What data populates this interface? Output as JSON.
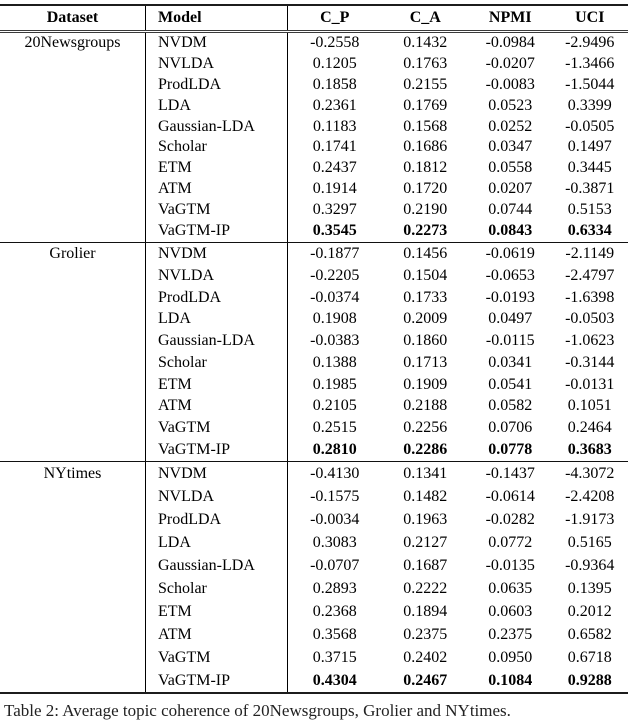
{
  "table": {
    "headers": [
      "Dataset",
      "Model",
      "C_P",
      "C_A",
      "NPMI",
      "UCI"
    ],
    "sections": [
      {
        "dataset": "20Newsgroups",
        "rows": [
          {
            "model": "NVDM",
            "values": [
              "-0.2558",
              "0.1432",
              "-0.0984",
              "-2.9496"
            ],
            "bold": false
          },
          {
            "model": "NVLDA",
            "values": [
              "0.1205",
              "0.1763",
              "-0.0207",
              "-1.3466"
            ],
            "bold": false
          },
          {
            "model": "ProdLDA",
            "values": [
              "0.1858",
              "0.2155",
              "-0.0083",
              "-1.5044"
            ],
            "bold": false
          },
          {
            "model": "LDA",
            "values": [
              "0.2361",
              "0.1769",
              "0.0523",
              "0.3399"
            ],
            "bold": false
          },
          {
            "model": "Gaussian-LDA",
            "values": [
              "0.1183",
              "0.1568",
              "0.0252",
              "-0.0505"
            ],
            "bold": false
          },
          {
            "model": "Scholar",
            "values": [
              "0.1741",
              "0.1686",
              "0.0347",
              "0.1497"
            ],
            "bold": false
          },
          {
            "model": "ETM",
            "values": [
              "0.2437",
              "0.1812",
              "0.0558",
              "0.3445"
            ],
            "bold": false
          },
          {
            "model": "ATM",
            "values": [
              "0.1914",
              "0.1720",
              "0.0207",
              "-0.3871"
            ],
            "bold": false
          },
          {
            "model": "VaGTM",
            "values": [
              "0.3297",
              "0.2190",
              "0.0744",
              "0.5153"
            ],
            "bold": false
          },
          {
            "model": "VaGTM-IP",
            "values": [
              "0.3545",
              "0.2273",
              "0.0843",
              "0.6334"
            ],
            "bold": true
          }
        ]
      },
      {
        "dataset": "Grolier",
        "rows": [
          {
            "model": "NVDM",
            "values": [
              "-0.1877",
              "0.1456",
              "-0.0619",
              "-2.1149"
            ],
            "bold": false
          },
          {
            "model": "NVLDA",
            "values": [
              "-0.2205",
              "0.1504",
              "-0.0653",
              "-2.4797"
            ],
            "bold": false
          },
          {
            "model": "ProdLDA",
            "values": [
              "-0.0374",
              "0.1733",
              "-0.0193",
              "-1.6398"
            ],
            "bold": false
          },
          {
            "model": "LDA",
            "values": [
              "0.1908",
              "0.2009",
              "0.0497",
              "-0.0503"
            ],
            "bold": false
          },
          {
            "model": "Gaussian-LDA",
            "values": [
              "-0.0383",
              "0.1860",
              "-0.0115",
              "-1.0623"
            ],
            "bold": false
          },
          {
            "model": "Scholar",
            "values": [
              "0.1388",
              "0.1713",
              "0.0341",
              "-0.3144"
            ],
            "bold": false
          },
          {
            "model": "ETM",
            "values": [
              "0.1985",
              "0.1909",
              "0.0541",
              "-0.0131"
            ],
            "bold": false
          },
          {
            "model": "ATM",
            "values": [
              "0.2105",
              "0.2188",
              "0.0582",
              "0.1051"
            ],
            "bold": false
          },
          {
            "model": "VaGTM",
            "values": [
              "0.2515",
              "0.2256",
              "0.0706",
              "0.2464"
            ],
            "bold": false
          },
          {
            "model": "VaGTM-IP",
            "values": [
              "0.2810",
              "0.2286",
              "0.0778",
              "0.3683"
            ],
            "bold": true
          }
        ]
      },
      {
        "dataset": "NYtimes",
        "rows": [
          {
            "model": "NVDM",
            "values": [
              "-0.4130",
              "0.1341",
              "-0.1437",
              "-4.3072"
            ],
            "bold": false
          },
          {
            "model": "NVLDA",
            "values": [
              "-0.1575",
              "0.1482",
              "-0.0614",
              "-2.4208"
            ],
            "bold": false
          },
          {
            "model": "ProdLDA",
            "values": [
              "-0.0034",
              "0.1963",
              "-0.0282",
              "-1.9173"
            ],
            "bold": false
          },
          {
            "model": "LDA",
            "values": [
              "0.3083",
              "0.2127",
              "0.0772",
              "0.5165"
            ],
            "bold": false
          },
          {
            "model": "Gaussian-LDA",
            "values": [
              "-0.0707",
              "0.1687",
              "-0.0135",
              "-0.9364"
            ],
            "bold": false
          },
          {
            "model": "Scholar",
            "values": [
              "0.2893",
              "0.2222",
              "0.0635",
              "0.1395"
            ],
            "bold": false
          },
          {
            "model": "ETM",
            "values": [
              "0.2368",
              "0.1894",
              "0.0603",
              "0.2012"
            ],
            "bold": false
          },
          {
            "model": "ATM",
            "values": [
              "0.3568",
              "0.2375",
              "0.2375",
              "0.6582"
            ],
            "bold": false
          },
          {
            "model": "VaGTM",
            "values": [
              "0.3715",
              "0.2402",
              "0.0950",
              "0.6718"
            ],
            "bold": false
          },
          {
            "model": "VaGTM-IP",
            "values": [
              "0.4304",
              "0.2467",
              "0.1084",
              "0.9288"
            ],
            "bold": true
          }
        ]
      }
    ]
  },
  "caption": "Table 2: Average topic coherence of 20Newsgroups, Grolier and NYtimes."
}
